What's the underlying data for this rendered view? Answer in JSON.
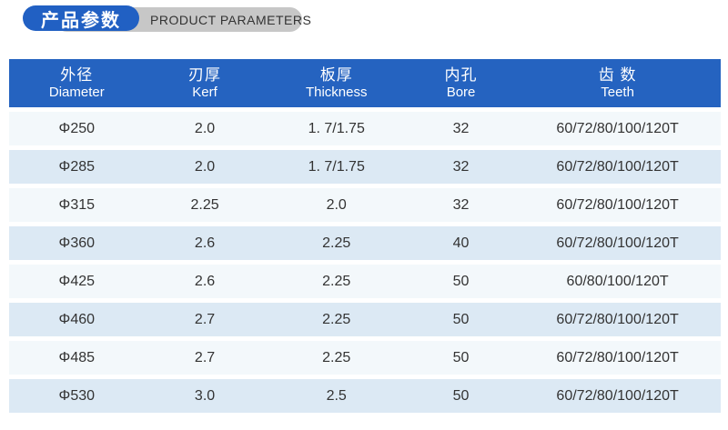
{
  "badge": {
    "title_zh": "产品参数",
    "title_en": "PRODUCT PARAMETERS",
    "pill_color": "#2160c3",
    "tab_color": "#c7c7c7"
  },
  "table": {
    "header_bg": "#2563c0",
    "row_color_odd": "#f3f8fb",
    "row_color_even": "#dce9f4",
    "columns": [
      {
        "zh": "外径",
        "en": "Diameter"
      },
      {
        "zh": "刃厚",
        "en": "Kerf"
      },
      {
        "zh": "板厚",
        "en": "Thickness"
      },
      {
        "zh": "内孔",
        "en": "Bore"
      },
      {
        "zh": "齿 数",
        "en": "Teeth"
      }
    ],
    "rows": [
      [
        "Φ250",
        "2.0",
        "1. 7/1.75",
        "32",
        "60/72/80/100/120T"
      ],
      [
        "Φ285",
        "2.0",
        "1. 7/1.75",
        "32",
        "60/72/80/100/120T"
      ],
      [
        "Φ315",
        "2.25",
        "2.0",
        "32",
        "60/72/80/100/120T"
      ],
      [
        "Φ360",
        "2.6",
        "2.25",
        "40",
        "60/72/80/100/120T"
      ],
      [
        "Φ425",
        "2.6",
        "2.25",
        "50",
        "60/80/100/120T"
      ],
      [
        "Φ460",
        "2.7",
        "2.25",
        "50",
        "60/72/80/100/120T"
      ],
      [
        "Φ485",
        "2.7",
        "2.25",
        "50",
        "60/72/80/100/120T"
      ],
      [
        "Φ530",
        "3.0",
        "2.5",
        "50",
        "60/72/80/100/120T"
      ]
    ]
  }
}
